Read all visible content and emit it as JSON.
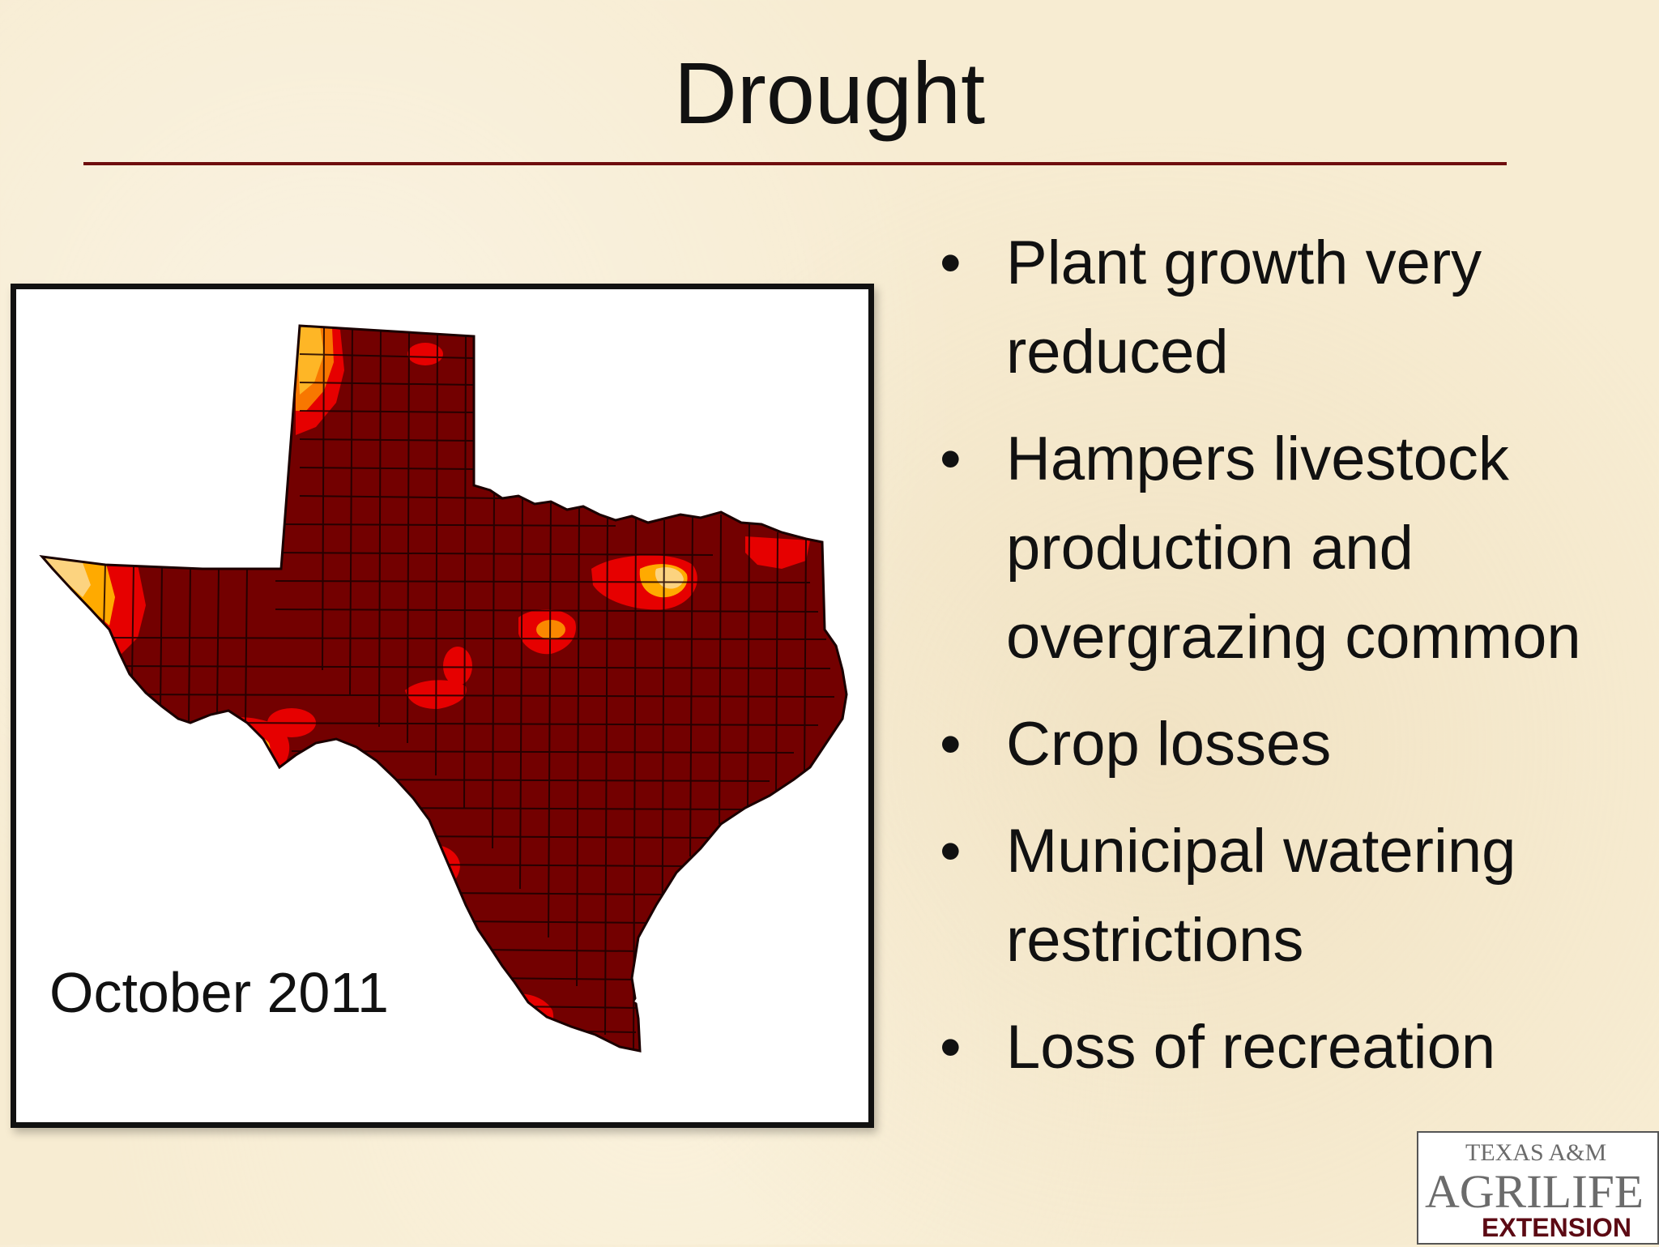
{
  "slide": {
    "title": "Drought",
    "map": {
      "caption": "October 2011",
      "colors": {
        "exceptional": "#730000",
        "extreme": "#e60000",
        "severe": "#ffaa00",
        "moderate": "#fcd37f",
        "boundary": "#1a0000"
      }
    },
    "bullets": [
      "Plant growth very reduced",
      "Hampers livestock production and overgrazing common",
      "Crop losses",
      "Municipal watering restrictions",
      "Loss of recreation"
    ],
    "logo": {
      "line1": "TEXAS A&M",
      "line2": "AGRILIFE",
      "line3": "EXTENSION",
      "colors": {
        "gray": "#6b6b6b",
        "maroon": "#5c0a14"
      }
    }
  }
}
